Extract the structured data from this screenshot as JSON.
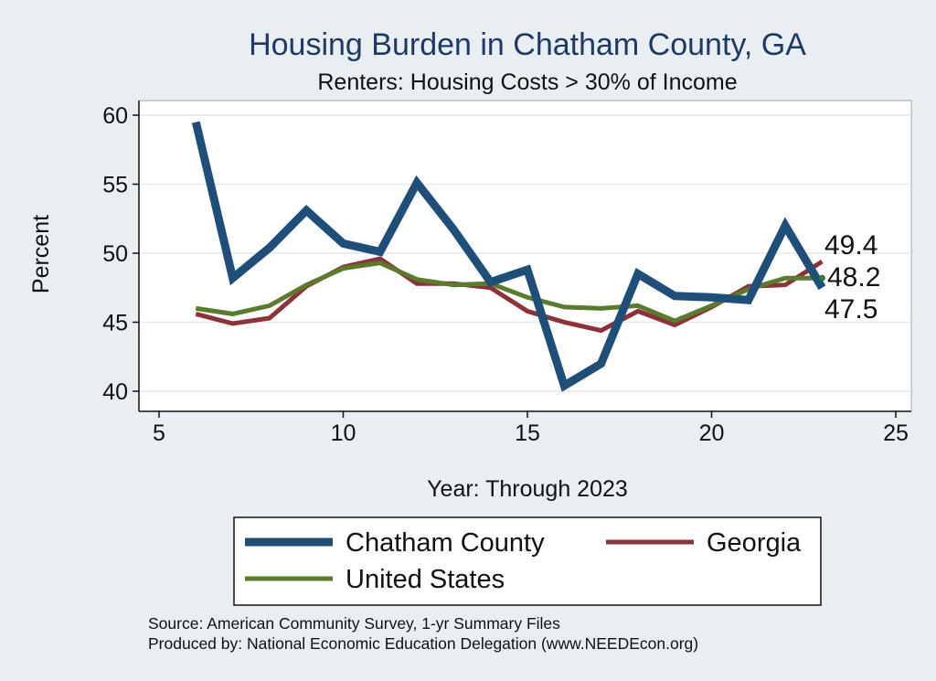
{
  "chart_data": {
    "type": "line",
    "title": "Housing Burden in Chatham County, GA",
    "subtitle": "Renters: Housing Costs > 30% of Income",
    "xlabel": "Year: Through 2023",
    "ylabel": "Percent",
    "xlim": [
      5,
      25
    ],
    "ylim": [
      40,
      60
    ],
    "xticks": [
      5,
      10,
      15,
      20,
      25
    ],
    "yticks": [
      40,
      45,
      50,
      55,
      60
    ],
    "grid": true,
    "legend_position": "bottom",
    "x": [
      6,
      7,
      8,
      9,
      10,
      11,
      12,
      13,
      14,
      15,
      16,
      17,
      18,
      19,
      20,
      21,
      22,
      23
    ],
    "series": [
      {
        "name": "Chatham County",
        "color": "#1f4e79",
        "values": [
          59.5,
          48.2,
          50.4,
          53.1,
          50.7,
          50.1,
          55.1,
          51.7,
          47.9,
          48.8,
          40.4,
          42.0,
          48.5,
          46.9,
          46.8,
          46.6,
          52.0,
          47.5
        ]
      },
      {
        "name": "Georgia",
        "color": "#8b3339",
        "values": [
          45.6,
          44.9,
          45.3,
          47.6,
          49.0,
          49.6,
          47.8,
          47.8,
          47.5,
          45.8,
          45.0,
          44.4,
          45.8,
          44.8,
          46.1,
          47.6,
          47.7,
          49.4
        ]
      },
      {
        "name": "United States",
        "color": "#5a7a2e",
        "values": [
          46.0,
          45.6,
          46.2,
          47.7,
          48.9,
          49.3,
          48.1,
          47.7,
          47.8,
          46.8,
          46.1,
          46.0,
          46.2,
          45.1,
          46.2,
          47.4,
          48.2,
          48.2
        ]
      }
    ],
    "end_labels": [
      "49.4",
      "48.2",
      "47.5"
    ],
    "legend": [
      "Chatham County",
      "Georgia",
      "United States"
    ]
  },
  "notes": {
    "source": "Source: American Community Survey, 1-yr Summary Files",
    "produced_by": "Produced by: National Economic Education Delegation (www.NEEDEcon.org)"
  }
}
